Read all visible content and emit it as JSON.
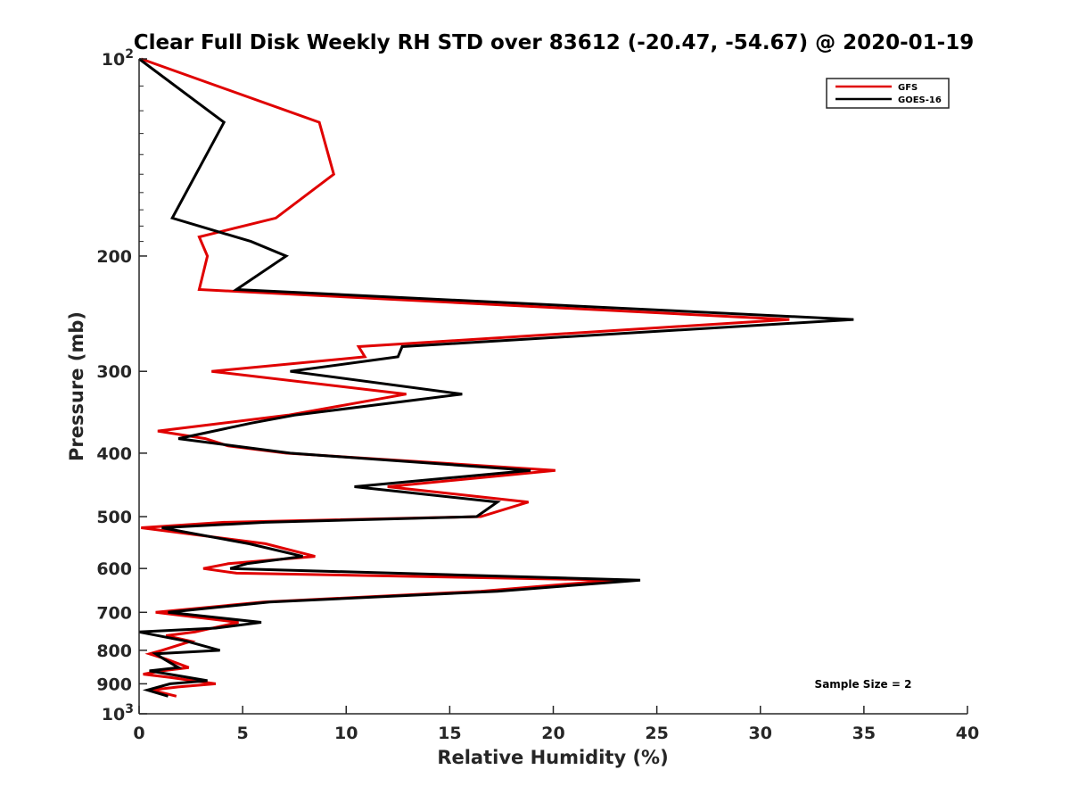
{
  "chart_data": {
    "type": "line",
    "title": "Clear Full Disk Weekly RH STD over 83612 (-20.47, -54.67) @ 2020-01-19",
    "xlabel": "Relative Humidity (%)",
    "ylabel": "Pressure (mb)",
    "xlim": [
      0,
      40
    ],
    "ylim": [
      100,
      1000
    ],
    "yscale": "log",
    "y_reversed": true,
    "x_ticks": [
      "0",
      "5",
      "10",
      "15",
      "20",
      "25",
      "30",
      "35",
      "40"
    ],
    "y_ticks": [
      {
        "value": 100,
        "label": "10",
        "sup": "2"
      },
      {
        "value": 200,
        "label": "200"
      },
      {
        "value": 300,
        "label": "300"
      },
      {
        "value": 400,
        "label": "400"
      },
      {
        "value": 500,
        "label": "500"
      },
      {
        "value": 600,
        "label": "600"
      },
      {
        "value": 700,
        "label": "700"
      },
      {
        "value": 800,
        "label": "800"
      },
      {
        "value": 900,
        "label": "900"
      },
      {
        "value": 1000,
        "label": "10",
        "sup": "3"
      }
    ],
    "grid": false,
    "legend_position": "top-right",
    "annotation": "Sample Size = 2",
    "series": [
      {
        "name": "GFS",
        "color": "#e00000",
        "points": [
          [
            0.1,
            100
          ],
          [
            8.7,
            125
          ],
          [
            9.4,
            150
          ],
          [
            6.6,
            175
          ],
          [
            2.9,
            187
          ],
          [
            3.3,
            200
          ],
          [
            2.9,
            225
          ],
          [
            31.4,
            250
          ],
          [
            10.6,
            275
          ],
          [
            10.9,
            285
          ],
          [
            3.5,
            300
          ],
          [
            12.9,
            325
          ],
          [
            7.2,
            350
          ],
          [
            0.9,
            370
          ],
          [
            3.2,
            380
          ],
          [
            4.3,
            390
          ],
          [
            7.1,
            400
          ],
          [
            20.1,
            425
          ],
          [
            12.0,
            450
          ],
          [
            18.8,
            475
          ],
          [
            16.5,
            500
          ],
          [
            4.1,
            510
          ],
          [
            0.1,
            520
          ],
          [
            6.1,
            550
          ],
          [
            8.5,
            575
          ],
          [
            4.3,
            590
          ],
          [
            3.1,
            600
          ],
          [
            4.7,
            610
          ],
          [
            23.0,
            625
          ],
          [
            16.5,
            650
          ],
          [
            6.0,
            675
          ],
          [
            0.8,
            700
          ],
          [
            4.8,
            725
          ],
          [
            2.7,
            750
          ],
          [
            1.3,
            760
          ],
          [
            2.5,
            775
          ],
          [
            1.1,
            800
          ],
          [
            0.5,
            810
          ],
          [
            1.3,
            825
          ],
          [
            2.4,
            850
          ],
          [
            1.1,
            860
          ],
          [
            0.2,
            870
          ],
          [
            1.5,
            880
          ],
          [
            3.7,
            900
          ],
          [
            1.9,
            910
          ],
          [
            0.6,
            920
          ],
          [
            1.8,
            940
          ]
        ]
      },
      {
        "name": "GOES-16",
        "color": "#000000",
        "points": [
          [
            0.0,
            100
          ],
          [
            4.1,
            125
          ],
          [
            1.6,
            175
          ],
          [
            5.4,
            190
          ],
          [
            7.1,
            200
          ],
          [
            4.7,
            225
          ],
          [
            34.5,
            250
          ],
          [
            12.7,
            275
          ],
          [
            12.5,
            285
          ],
          [
            7.3,
            300
          ],
          [
            15.6,
            325
          ],
          [
            7.5,
            350
          ],
          [
            5.4,
            360
          ],
          [
            1.9,
            380
          ],
          [
            7.3,
            400
          ],
          [
            18.9,
            425
          ],
          [
            10.4,
            450
          ],
          [
            17.3,
            475
          ],
          [
            16.3,
            500
          ],
          [
            6.1,
            510
          ],
          [
            1.1,
            520
          ],
          [
            5.3,
            550
          ],
          [
            7.9,
            575
          ],
          [
            5.2,
            590
          ],
          [
            4.4,
            600
          ],
          [
            24.2,
            625
          ],
          [
            17.3,
            650
          ],
          [
            6.3,
            675
          ],
          [
            1.4,
            700
          ],
          [
            5.9,
            725
          ],
          [
            3.7,
            740
          ],
          [
            0.0,
            750
          ],
          [
            2.3,
            775
          ],
          [
            3.9,
            800
          ],
          [
            0.8,
            810
          ],
          [
            1.2,
            825
          ],
          [
            1.9,
            850
          ],
          [
            0.5,
            860
          ],
          [
            3.3,
            890
          ],
          [
            1.5,
            900
          ],
          [
            0.4,
            920
          ],
          [
            1.4,
            940
          ]
        ]
      }
    ]
  }
}
